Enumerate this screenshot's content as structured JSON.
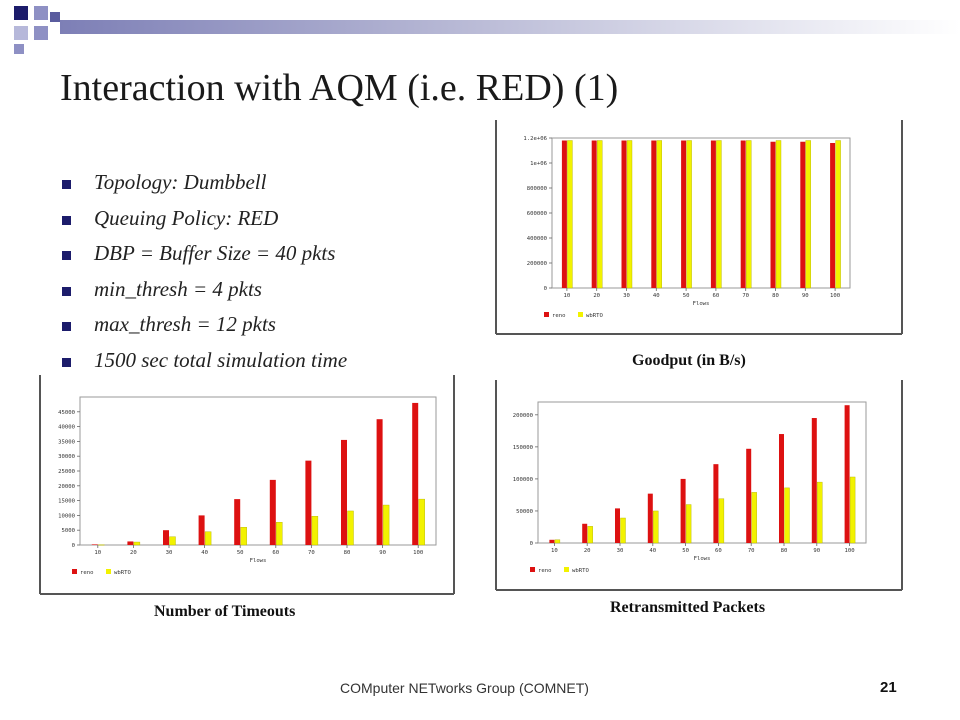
{
  "slide": {
    "title": "Interaction with AQM (i.e. RED) (1)",
    "bullets": [
      "Topology: Dumbbell",
      "Queuing Policy: RED",
      "DBP = Buffer Size = 40 pkts",
      "min_thresh = 4 pkts",
      "max_thresh = 12 pkts",
      "1500 sec total simulation time"
    ],
    "footer": "COMputer NETworks Group (COMNET)",
    "page_number": "21",
    "colors": {
      "accent": "#1c1c6b",
      "reno": "#dd1111",
      "wbRTO": "#f2f200"
    }
  },
  "captions": {
    "goodput": "Goodput (in B/s)",
    "timeouts": "Number of Timeouts",
    "retransmitted": "Retransmitted  Packets"
  },
  "chart_data": [
    {
      "id": "goodput",
      "type": "bar",
      "title": "Goodput (in B/s)",
      "xlabel": "Flows",
      "categories": [
        "10",
        "20",
        "30",
        "40",
        "50",
        "60",
        "70",
        "80",
        "90",
        "100"
      ],
      "ylim": [
        0,
        1200000
      ],
      "yticks": [
        0,
        200000,
        400000,
        600000,
        800000,
        1000000,
        1200000
      ],
      "ytick_labels": [
        "0",
        "200000",
        "400000",
        "600000",
        "800000",
        "1e+06",
        "1.2e+06"
      ],
      "series": [
        {
          "name": "reno",
          "values": [
            1180000,
            1180000,
            1180000,
            1180000,
            1180000,
            1180000,
            1180000,
            1170000,
            1170000,
            1160000
          ]
        },
        {
          "name": "wbRTO",
          "values": [
            1180000,
            1180000,
            1180000,
            1180000,
            1180000,
            1180000,
            1180000,
            1180000,
            1180000,
            1180000
          ]
        }
      ]
    },
    {
      "id": "timeouts",
      "type": "bar",
      "title": "Number of Timeouts",
      "xlabel": "Flows",
      "categories": [
        "10",
        "20",
        "30",
        "40",
        "50",
        "60",
        "70",
        "80",
        "90",
        "100"
      ],
      "ylim": [
        0,
        50000
      ],
      "yticks": [
        0,
        5000,
        10000,
        15000,
        20000,
        25000,
        30000,
        35000,
        40000,
        45000
      ],
      "ytick_labels": [
        "0",
        "5000",
        "10000",
        "15000",
        "20000",
        "25000",
        "30000",
        "35000",
        "40000",
        "45000"
      ],
      "series": [
        {
          "name": "reno",
          "values": [
            200,
            1200,
            5000,
            10000,
            15500,
            22000,
            28500,
            35500,
            42500,
            48000
          ]
        },
        {
          "name": "wbRTO",
          "values": [
            100,
            1000,
            2800,
            4500,
            6000,
            7700,
            9700,
            11500,
            13500,
            15500
          ]
        }
      ]
    },
    {
      "id": "retransmitted",
      "type": "bar",
      "title": "Retransmitted  Packets",
      "xlabel": "Flows",
      "categories": [
        "10",
        "20",
        "30",
        "40",
        "50",
        "60",
        "70",
        "80",
        "90",
        "100"
      ],
      "ylim": [
        0,
        220000
      ],
      "yticks": [
        0,
        50000,
        100000,
        150000,
        200000
      ],
      "ytick_labels": [
        "0",
        "50000",
        "100000",
        "150000",
        "200000"
      ],
      "series": [
        {
          "name": "reno",
          "values": [
            5000,
            30000,
            54000,
            77000,
            100000,
            123000,
            147000,
            170000,
            195000,
            215000
          ]
        },
        {
          "name": "wbRTO",
          "values": [
            5000,
            26000,
            39000,
            50000,
            60000,
            69000,
            79000,
            86000,
            95000,
            103000
          ]
        }
      ]
    }
  ]
}
